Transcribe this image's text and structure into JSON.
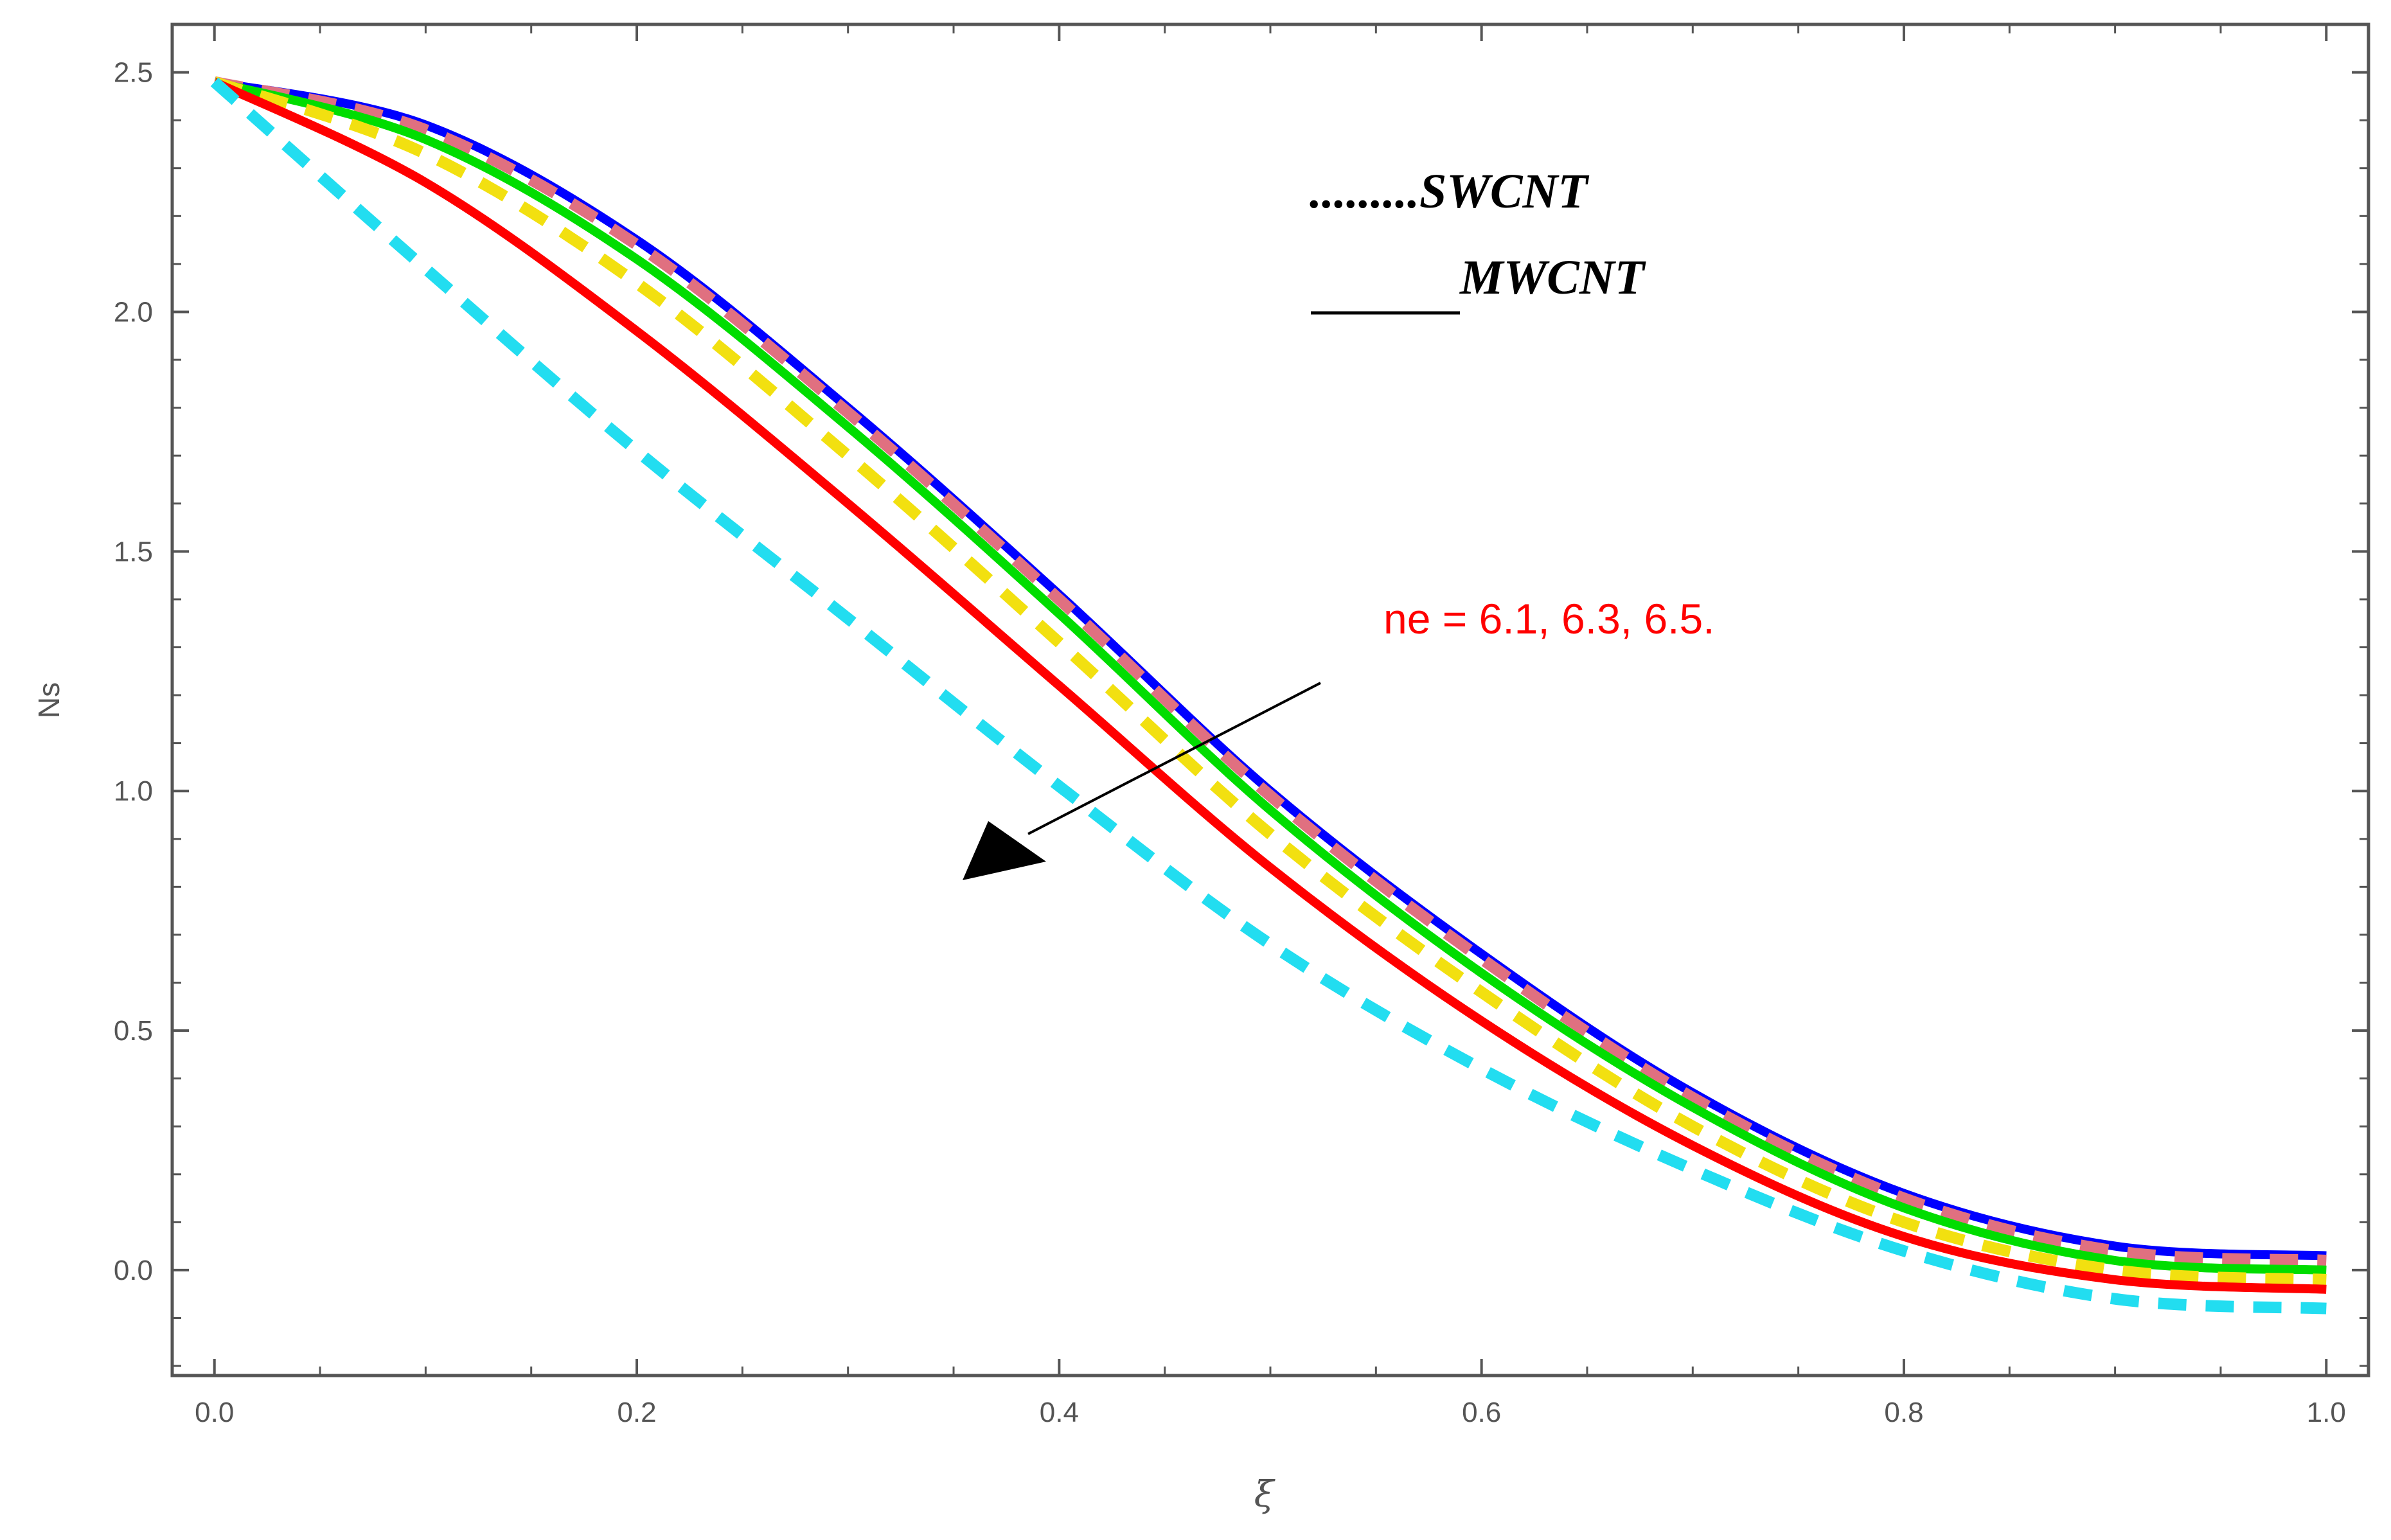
{
  "chart_data": {
    "type": "line",
    "title": "",
    "xlabel": "ξ",
    "ylabel": "Ns",
    "xlim": [
      -0.02,
      1.02
    ],
    "ylim": [
      -0.22,
      2.6
    ],
    "x_ticks": [
      "0.0",
      "0.2",
      "0.4",
      "0.6",
      "0.8",
      "1.0"
    ],
    "y_ticks": [
      "0.0",
      "0.5",
      "1.0",
      "1.5",
      "2.0",
      "2.5"
    ],
    "x": [
      0.0,
      0.1,
      0.2,
      0.3,
      0.4,
      0.5,
      0.6,
      0.7,
      0.8,
      0.9,
      1.0
    ],
    "series": [
      {
        "name": "MWCNT ne=6.1",
        "style": "solid",
        "color": "#0000ff",
        "values": [
          2.48,
          2.39,
          2.15,
          1.8,
          1.41,
          1.0,
          0.66,
          0.37,
          0.16,
          0.05,
          0.03
        ]
      },
      {
        "name": "SWCNT ne=6.1",
        "style": "dashed",
        "color": "#e07080",
        "values": [
          2.48,
          2.38,
          2.14,
          1.79,
          1.4,
          0.99,
          0.65,
          0.36,
          0.15,
          0.04,
          0.02
        ]
      },
      {
        "name": "MWCNT ne=6.3",
        "style": "solid",
        "color": "#00dd00",
        "values": [
          2.48,
          2.36,
          2.11,
          1.76,
          1.37,
          0.96,
          0.62,
          0.34,
          0.13,
          0.02,
          0.0
        ]
      },
      {
        "name": "SWCNT ne=6.3",
        "style": "dashed",
        "color": "#f2e010",
        "values": [
          2.48,
          2.33,
          2.06,
          1.7,
          1.31,
          0.91,
          0.58,
          0.3,
          0.1,
          0.0,
          -0.02
        ]
      },
      {
        "name": "MWCNT ne=6.5",
        "style": "solid",
        "color": "#ff0000",
        "values": [
          2.48,
          2.27,
          1.96,
          1.6,
          1.22,
          0.84,
          0.52,
          0.26,
          0.07,
          -0.02,
          -0.04
        ]
      },
      {
        "name": "SWCNT ne=6.5",
        "style": "dashed",
        "color": "#22ddf0",
        "values": [
          2.48,
          2.09,
          1.71,
          1.36,
          1.01,
          0.68,
          0.42,
          0.21,
          0.04,
          -0.06,
          -0.08
        ]
      }
    ],
    "legend": [
      {
        "text": ".........SWCNT",
        "style": "dotted"
      },
      {
        "text": "MWCNT",
        "style": "solid"
      }
    ],
    "annotation": {
      "text": "ne = 6.1, 6.3, 6.5.",
      "color": "#ff0000"
    }
  }
}
